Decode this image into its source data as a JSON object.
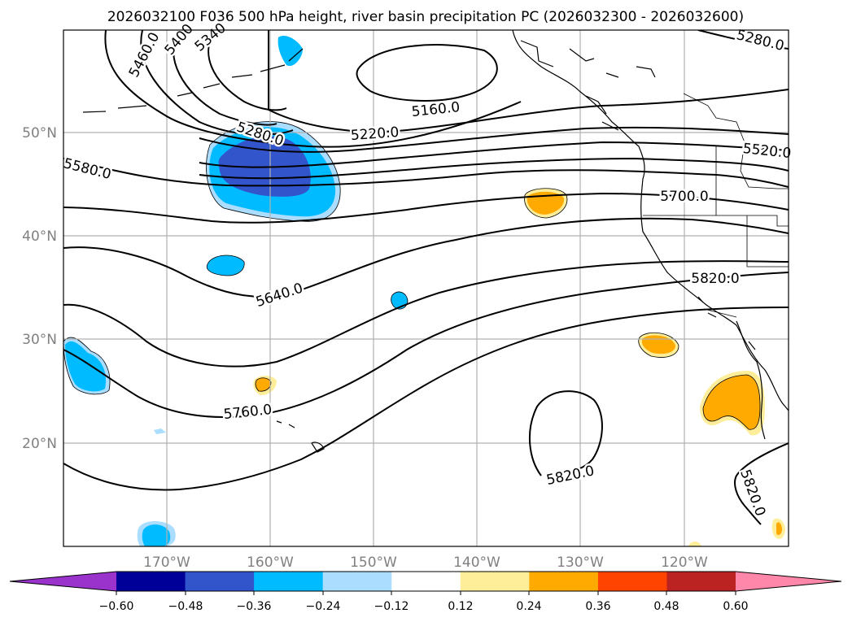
{
  "figure": {
    "title": "2026032100 F036 500 hPa height, river basin precipitation PC (2026032300 - 2026032600)"
  },
  "map": {
    "longitude_ticks": [
      "170°W",
      "160°W",
      "150°W",
      "140°W",
      "130°W",
      "120°W"
    ],
    "latitude_ticks": [
      "50°N",
      "40°N",
      "30°N",
      "20°N"
    ]
  },
  "contour_labels": [
    "5460.0",
    "5400",
    "5340",
    "5160.0",
    "5220.0",
    "5280.0",
    "5580.0",
    "5280.0",
    "5520.0",
    "5700.0",
    "5640.0",
    "5820.0",
    "5760.0",
    "5820.0",
    "5820.0"
  ],
  "colorbar": {
    "tick_labels": [
      "−0.60",
      "−0.48",
      "−0.36",
      "−0.24",
      "−0.12",
      "0.12",
      "0.24",
      "0.36",
      "0.48",
      "0.60"
    ],
    "colors": {
      "under": "#9933cc",
      "lt_060": "#000099",
      "lt_048": "#3355cc",
      "lt_036": "#00bbff",
      "lt_024": "#aaddff",
      "neutral": "#ffffff",
      "gt_012": "#ffee99",
      "gt_024": "#ffaa00",
      "gt_036": "#ff4400",
      "gt_048": "#bb2222",
      "over": "#ff88aa"
    }
  }
}
